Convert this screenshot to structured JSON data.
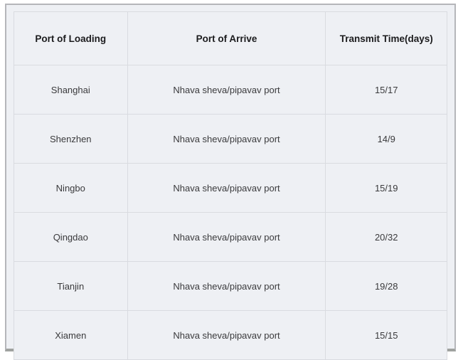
{
  "colors": {
    "page_bg": "#ffffff",
    "panel_bg": "#eef0f4",
    "panel_border": "#b5b6ba",
    "panel_border_bottom": "#9fa29f",
    "cell_border": "#d9dbe0",
    "header_text": "#1b1b1d",
    "cell_text": "#3a3a3c"
  },
  "table": {
    "headers": [
      "Port of Loading",
      "Port of Arrive",
      "Transmit Time(days)"
    ],
    "rows": [
      [
        "Shanghai",
        "Nhava sheva/pipavav port",
        "15/17"
      ],
      [
        "Shenzhen",
        "Nhava sheva/pipavav port",
        "14/9"
      ],
      [
        "Ningbo",
        "Nhava sheva/pipavav port",
        "15/19"
      ],
      [
        "Qingdao",
        "Nhava sheva/pipavav port",
        "20/32"
      ],
      [
        "Tianjin",
        "Nhava sheva/pipavav port",
        "19/28"
      ],
      [
        "Xiamen",
        "Nhava sheva/pipavav port",
        "15/15"
      ]
    ]
  },
  "chart_data": {
    "type": "table",
    "title": "",
    "columns": [
      "Port of Loading",
      "Port of Arrive",
      "Transmit Time(days)"
    ],
    "rows": [
      {
        "port_of_loading": "Shanghai",
        "port_of_arrive": "Nhava sheva/pipavav port",
        "transmit_time_days": "15/17"
      },
      {
        "port_of_loading": "Shenzhen",
        "port_of_arrive": "Nhava sheva/pipavav port",
        "transmit_time_days": "14/9"
      },
      {
        "port_of_loading": "Ningbo",
        "port_of_arrive": "Nhava sheva/pipavav port",
        "transmit_time_days": "15/19"
      },
      {
        "port_of_loading": "Qingdao",
        "port_of_arrive": "Nhava sheva/pipavav port",
        "transmit_time_days": "20/32"
      },
      {
        "port_of_loading": "Tianjin",
        "port_of_arrive": "Nhava sheva/pipavav port",
        "transmit_time_days": "19/28"
      },
      {
        "port_of_loading": "Xiamen",
        "port_of_arrive": "Nhava sheva/pipavav port",
        "transmit_time_days": "15/15"
      }
    ]
  }
}
